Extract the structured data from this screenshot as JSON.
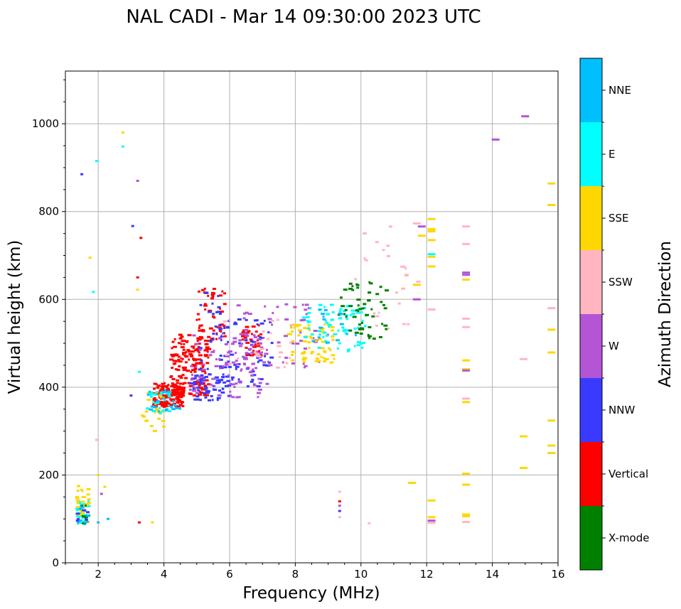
{
  "chart_data": {
    "type": "scatter",
    "title": "NAL CADI - Mar 14 09:30:00 2023 UTC",
    "xlabel": "Frequency (MHz)",
    "ylabel": "Virtual height (km)",
    "xlim": [
      1,
      16
    ],
    "ylim": [
      0,
      1120
    ],
    "xticks": [
      2,
      4,
      6,
      8,
      10,
      12,
      14,
      16
    ],
    "xtick_labels": [
      "2",
      "4",
      "6",
      "8",
      "10",
      "12",
      "14",
      "16"
    ],
    "yticks": [
      0,
      200,
      400,
      600,
      800,
      1000
    ],
    "ytick_labels": [
      "0",
      "200",
      "400",
      "600",
      "800",
      "1000"
    ],
    "grid": true,
    "colorbar": {
      "label": "Azimuth Direction",
      "categories": [
        "X-mode",
        "Vertical",
        "NNW",
        "W",
        "SSW",
        "SSE",
        "E",
        "NNE"
      ],
      "colors": [
        "#008000",
        "#ff0000",
        "#3a3aff",
        "#b455d6",
        "#ffb6c1",
        "#ffd700",
        "#00ffff",
        "#00bfff"
      ]
    },
    "clusters": [
      {
        "dir": "Vertical",
        "x": [
          3.7,
          4.6
        ],
        "y": [
          355,
          410
        ],
        "n": 170
      },
      {
        "dir": "Vertical",
        "x": [
          4.2,
          5.4
        ],
        "y": [
          380,
          520
        ],
        "n": 160
      },
      {
        "dir": "Vertical",
        "x": [
          5.0,
          5.9
        ],
        "y": [
          470,
          630
        ],
        "n": 55
      },
      {
        "dir": "Vertical",
        "x": [
          6.4,
          7.0
        ],
        "y": [
          470,
          545
        ],
        "n": 35
      },
      {
        "dir": "NNW",
        "x": [
          4.8,
          6.0
        ],
        "y": [
          370,
          430
        ],
        "n": 60
      },
      {
        "dir": "NNW",
        "x": [
          5.5,
          7.3
        ],
        "y": [
          400,
          560
        ],
        "n": 70
      },
      {
        "dir": "NNW",
        "x": [
          5.0,
          6.0
        ],
        "y": [
          440,
          620
        ],
        "n": 25
      },
      {
        "dir": "W",
        "x": [
          4.8,
          7.2
        ],
        "y": [
          375,
          520
        ],
        "n": 90
      },
      {
        "dir": "W",
        "x": [
          6.2,
          9.0
        ],
        "y": [
          440,
          590
        ],
        "n": 60
      },
      {
        "dir": "SSE",
        "x": [
          7.8,
          9.2
        ],
        "y": [
          455,
          545
        ],
        "n": 70
      },
      {
        "dir": "SSE",
        "x": [
          3.3,
          4.0
        ],
        "y": [
          300,
          390
        ],
        "n": 25
      },
      {
        "dir": "E",
        "x": [
          8.2,
          10.2
        ],
        "y": [
          480,
          590
        ],
        "n": 70
      },
      {
        "dir": "E",
        "x": [
          3.5,
          4.2
        ],
        "y": [
          340,
          390
        ],
        "n": 25
      },
      {
        "dir": "X-mode",
        "x": [
          9.3,
          10.8
        ],
        "y": [
          510,
          640
        ],
        "n": 55
      },
      {
        "dir": "SSW",
        "x": [
          9.8,
          11.8
        ],
        "y": [
          520,
          780
        ],
        "n": 25
      },
      {
        "dir": "SSW",
        "x": [
          5.8,
          8.0
        ],
        "y": [
          440,
          560
        ],
        "n": 25
      },
      {
        "dir": "NNE",
        "x": [
          3.5,
          4.5
        ],
        "y": [
          340,
          395
        ],
        "n": 20
      },
      {
        "dir": "NNE",
        "x": [
          8.5,
          10.0
        ],
        "y": [
          490,
          580
        ],
        "n": 15
      },
      {
        "dir": "E",
        "x": [
          1.35,
          1.75
        ],
        "y": [
          88,
          140
        ],
        "n": 30
      },
      {
        "dir": "SSE",
        "x": [
          1.35,
          1.75
        ],
        "y": [
          88,
          180
        ],
        "n": 25
      },
      {
        "dir": "X-mode",
        "x": [
          1.4,
          1.7
        ],
        "y": [
          88,
          150
        ],
        "n": 8
      },
      {
        "dir": "NNE",
        "x": [
          1.35,
          1.7
        ],
        "y": [
          88,
          130
        ],
        "n": 8
      },
      {
        "dir": "NNW",
        "x": [
          1.3,
          1.7
        ],
        "y": [
          88,
          130
        ],
        "n": 6
      }
    ],
    "points": [
      {
        "dir": "NNW",
        "x": 1.5,
        "y": 885
      },
      {
        "dir": "E",
        "x": 1.85,
        "y": 617
      },
      {
        "dir": "SSE",
        "x": 1.75,
        "y": 695
      },
      {
        "dir": "E",
        "x": 1.95,
        "y": 915
      },
      {
        "dir": "SSE",
        "x": 2.75,
        "y": 980
      },
      {
        "dir": "E",
        "x": 2.75,
        "y": 948
      },
      {
        "dir": "W",
        "x": 3.2,
        "y": 870
      },
      {
        "dir": "NNW",
        "x": 3.05,
        "y": 767
      },
      {
        "dir": "Vertical",
        "x": 3.3,
        "y": 740
      },
      {
        "dir": "Vertical",
        "x": 3.2,
        "y": 650
      },
      {
        "dir": "SSE",
        "x": 3.2,
        "y": 622
      },
      {
        "dir": "NNW",
        "x": 3.0,
        "y": 381
      },
      {
        "dir": "E",
        "x": 3.25,
        "y": 435
      },
      {
        "dir": "NNE",
        "x": 2.3,
        "y": 100
      },
      {
        "dir": "NNE",
        "x": 2.0,
        "y": 92
      },
      {
        "dir": "SSE",
        "x": 2.2,
        "y": 173
      },
      {
        "dir": "W",
        "x": 2.1,
        "y": 157
      },
      {
        "dir": "SSE",
        "x": 2.0,
        "y": 200
      },
      {
        "dir": "SSW",
        "x": 1.95,
        "y": 280
      },
      {
        "dir": "Vertical",
        "x": 3.25,
        "y": 92
      },
      {
        "dir": "SSE",
        "x": 3.65,
        "y": 92
      },
      {
        "dir": "SSW",
        "x": 9.35,
        "y": 162
      },
      {
        "dir": "Vertical",
        "x": 9.35,
        "y": 140
      },
      {
        "dir": "W",
        "x": 9.35,
        "y": 130
      },
      {
        "dir": "NNW",
        "x": 9.35,
        "y": 118
      },
      {
        "dir": "SSW",
        "x": 9.35,
        "y": 104
      },
      {
        "dir": "SSW",
        "x": 10.25,
        "y": 90
      },
      {
        "dir": "SSE",
        "x": 11.55,
        "y": 182
      },
      {
        "dir": "SSE",
        "x": 12.15,
        "y": 142
      },
      {
        "dir": "SSE",
        "x": 12.15,
        "y": 104
      },
      {
        "dir": "W",
        "x": 12.15,
        "y": 96
      },
      {
        "dir": "SSW",
        "x": 12.15,
        "y": 91
      },
      {
        "dir": "SSE",
        "x": 12.15,
        "y": 783
      },
      {
        "dir": "SSE",
        "x": 12.15,
        "y": 760
      },
      {
        "dir": "SSE",
        "x": 12.15,
        "y": 755
      },
      {
        "dir": "SSE",
        "x": 12.15,
        "y": 735
      },
      {
        "dir": "E",
        "x": 12.15,
        "y": 703
      },
      {
        "dir": "SSE",
        "x": 12.15,
        "y": 697
      },
      {
        "dir": "SSE",
        "x": 12.15,
        "y": 675
      },
      {
        "dir": "SSW",
        "x": 12.15,
        "y": 577
      },
      {
        "dir": "SSW",
        "x": 11.7,
        "y": 773
      },
      {
        "dir": "W",
        "x": 11.85,
        "y": 766
      },
      {
        "dir": "SSE",
        "x": 11.85,
        "y": 745
      },
      {
        "dir": "SSE",
        "x": 11.7,
        "y": 633
      },
      {
        "dir": "W",
        "x": 11.7,
        "y": 600
      },
      {
        "dir": "SSW",
        "x": 13.2,
        "y": 766
      },
      {
        "dir": "SSW",
        "x": 13.2,
        "y": 726
      },
      {
        "dir": "W",
        "x": 13.2,
        "y": 661
      },
      {
        "dir": "W",
        "x": 13.2,
        "y": 656
      },
      {
        "dir": "SSE",
        "x": 13.2,
        "y": 645
      },
      {
        "dir": "SSW",
        "x": 13.2,
        "y": 556
      },
      {
        "dir": "SSW",
        "x": 13.2,
        "y": 537
      },
      {
        "dir": "SSE",
        "x": 13.2,
        "y": 461
      },
      {
        "dir": "SSE",
        "x": 13.2,
        "y": 441
      },
      {
        "dir": "W",
        "x": 13.2,
        "y": 438
      },
      {
        "dir": "SSW",
        "x": 13.2,
        "y": 374
      },
      {
        "dir": "SSE",
        "x": 13.2,
        "y": 366
      },
      {
        "dir": "SSE",
        "x": 13.2,
        "y": 203
      },
      {
        "dir": "SSE",
        "x": 13.2,
        "y": 178
      },
      {
        "dir": "SSE",
        "x": 13.2,
        "y": 110
      },
      {
        "dir": "SSE",
        "x": 13.2,
        "y": 106
      },
      {
        "dir": "SSW",
        "x": 13.2,
        "y": 93
      },
      {
        "dir": "W",
        "x": 14.1,
        "y": 964
      },
      {
        "dir": "W",
        "x": 15.0,
        "y": 1017
      },
      {
        "dir": "SSW",
        "x": 14.95,
        "y": 464
      },
      {
        "dir": "SSE",
        "x": 14.95,
        "y": 288
      },
      {
        "dir": "SSE",
        "x": 14.95,
        "y": 216
      },
      {
        "dir": "SSE",
        "x": 15.8,
        "y": 864
      },
      {
        "dir": "SSE",
        "x": 15.8,
        "y": 815
      },
      {
        "dir": "SSW",
        "x": 15.8,
        "y": 580
      },
      {
        "dir": "SSE",
        "x": 15.8,
        "y": 531
      },
      {
        "dir": "SSE",
        "x": 15.8,
        "y": 479
      },
      {
        "dir": "SSE",
        "x": 15.8,
        "y": 324
      },
      {
        "dir": "SSE",
        "x": 15.8,
        "y": 267
      },
      {
        "dir": "SSE",
        "x": 15.8,
        "y": 250
      }
    ]
  }
}
